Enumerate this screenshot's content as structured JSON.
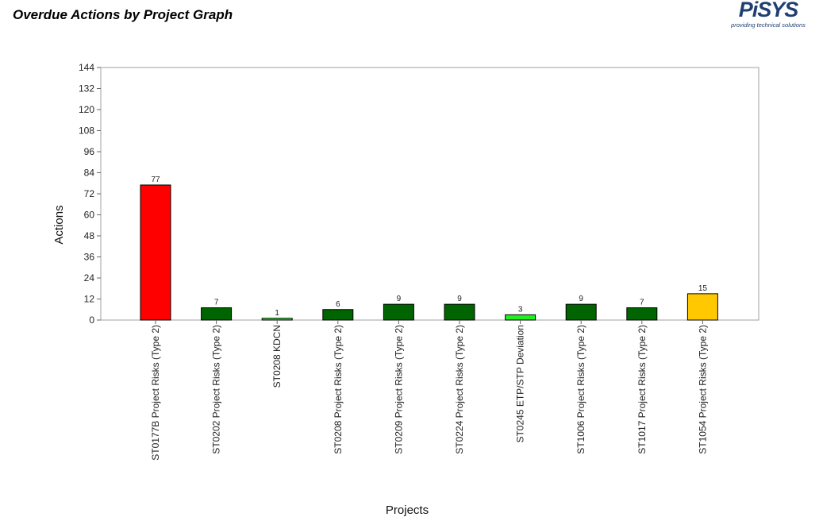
{
  "page": {
    "title": "Overdue Actions by Project Graph"
  },
  "logo": {
    "wordmark": "PiSYS",
    "tagline": "providing technical solutions"
  },
  "chart_data": {
    "type": "bar",
    "title": "",
    "xlabel": "Projects",
    "ylabel": "Actions",
    "ylim": [
      0,
      144
    ],
    "yticks": [
      0,
      12,
      24,
      36,
      48,
      60,
      72,
      84,
      96,
      108,
      120,
      132,
      144
    ],
    "grid": false,
    "legend": "none",
    "categories": [
      "ST0177B Project Risks (Type 2)",
      "ST0202 Project Risks (Type 2)",
      "ST0208 KDCN",
      "ST0208 Project Risks (Type 2)",
      "ST0209 Project Risks (Type 2)",
      "ST0224 Project Risks (Type 2)",
      "ST0245 ETP/STP Deviation",
      "ST1006 Project Risks (Type 2)",
      "ST1017 Project Risks (Type 2)",
      "ST1054 Project Risks (Type 2)"
    ],
    "values": [
      77,
      7,
      1,
      6,
      9,
      9,
      3,
      9,
      7,
      15
    ],
    "colors": [
      "#ff0000",
      "#006400",
      "#22ee22",
      "#006400",
      "#006400",
      "#006400",
      "#22ee22",
      "#006400",
      "#006400",
      "#ffc800"
    ]
  }
}
